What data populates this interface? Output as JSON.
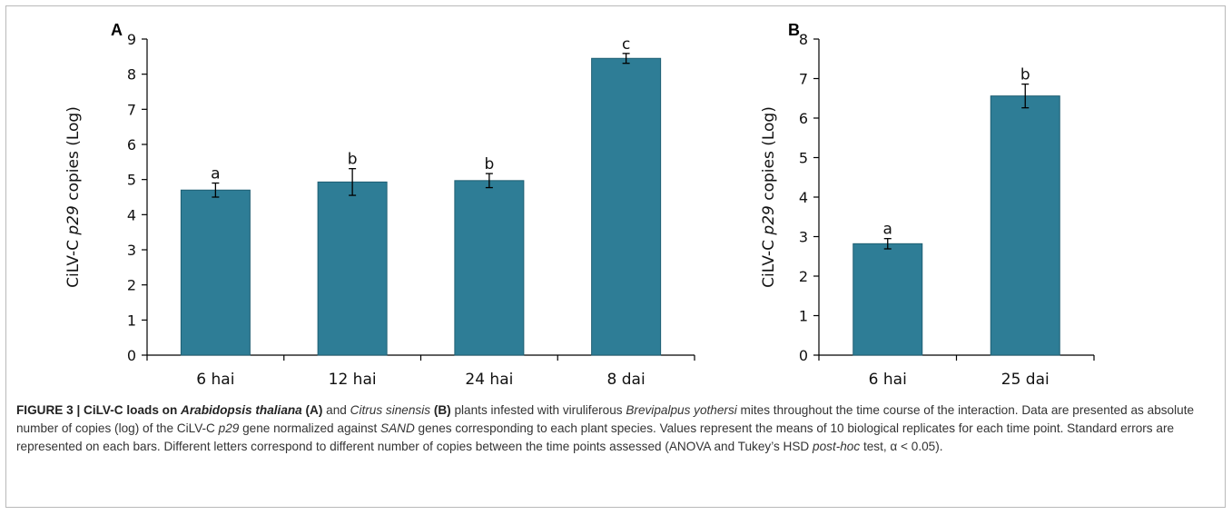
{
  "chart_data": [
    {
      "type": "bar",
      "panel": "A",
      "categories": [
        "6 hai",
        "12 hai",
        "24 hai",
        "8 dai"
      ],
      "values": [
        4.7,
        4.93,
        4.97,
        8.45
      ],
      "errors": [
        0.2,
        0.38,
        0.2,
        0.14
      ],
      "letters": [
        "a",
        "b",
        "b",
        "c"
      ],
      "ylabel_parts": [
        "CiLV-C ",
        "p29",
        " copies (Log)"
      ],
      "ylim": [
        0,
        9
      ],
      "yticks": [
        0,
        1,
        2,
        3,
        4,
        5,
        6,
        7,
        8,
        9
      ],
      "grid": false,
      "color": "#2e7d96"
    },
    {
      "type": "bar",
      "panel": "B",
      "categories": [
        "6 hai",
        "25 dai"
      ],
      "values": [
        2.82,
        6.56
      ],
      "errors": [
        0.13,
        0.3
      ],
      "letters": [
        "a",
        "b"
      ],
      "ylabel_parts": [
        "CiLV-C ",
        "p29",
        " copies (Log)"
      ],
      "ylim": [
        0,
        8
      ],
      "yticks": [
        0,
        1,
        2,
        3,
        4,
        5,
        6,
        7,
        8
      ],
      "grid": false,
      "color": "#2e7d96"
    }
  ],
  "caption": {
    "label": "FIGURE 3 | CiLV-C loads on ",
    "species_a": "Arabidopsis thaliana",
    "tag_a": "(A)",
    "and": " and ",
    "species_b": "Citrus sinensis",
    "tag_b": "(B)",
    "text1": " plants infested with viruliferous ",
    "mite": "Brevipalpus yothersi",
    "text2": " mites throughout the time course of the interaction. Data are presented as absolute number of copies (log) of the CiLV-C ",
    "gene": "p29",
    "text3": " gene normalized against ",
    "ref": "SAND",
    "text4": " genes corresponding to each plant species. Values represent the means of 10 biological replicates for each time point. Standard errors are represented on each bars. Different letters correspond to different number of copies between the time points assessed (ANOVA and Tukey’s HSD ",
    "posthoc": "post-hoc",
    "text5": " test, α < 0.05)."
  }
}
